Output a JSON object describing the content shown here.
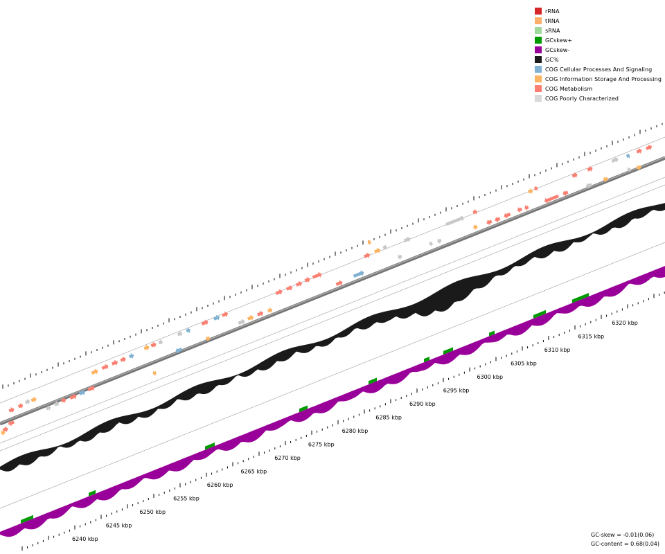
{
  "legend": [
    {
      "label": "rRNA",
      "color": "#d62728"
    },
    {
      "label": "tRNA",
      "color": "#fdae6b"
    },
    {
      "label": "sRNA",
      "color": "#a1d99b"
    },
    {
      "label": "GCskew+",
      "color": "#009900"
    },
    {
      "label": "GCskew-",
      "color": "#990099"
    },
    {
      "label": "GC%",
      "color": "#1a1a1a"
    },
    {
      "label": "COG Cellular Processes And Signaling",
      "color": "#80b1d3"
    },
    {
      "label": "COG Information Storage And Processing",
      "color": "#fdb462"
    },
    {
      "label": "COG Metabolism",
      "color": "#fb8072"
    },
    {
      "label": "COG Poorly Characterized",
      "color": "#d9d9d9"
    }
  ],
  "axis": {
    "unit": "kbp",
    "labels": [
      "6240 kbp",
      "6245 kbp",
      "6250 kbp",
      "6255 kbp",
      "6260 kbp",
      "6265 kbp",
      "6270 kbp",
      "6275 kbp",
      "6280 kbp",
      "6285 kbp",
      "6290 kbp",
      "6295 kbp",
      "6300 kbp",
      "6305 kbp",
      "6310 kbp",
      "6315 kbp",
      "6320 kbp"
    ]
  },
  "stats": {
    "gc_skew": "GC-skew = -0.01(0.06)",
    "gc_content": "GC-content = 0.68(0.04)"
  }
}
